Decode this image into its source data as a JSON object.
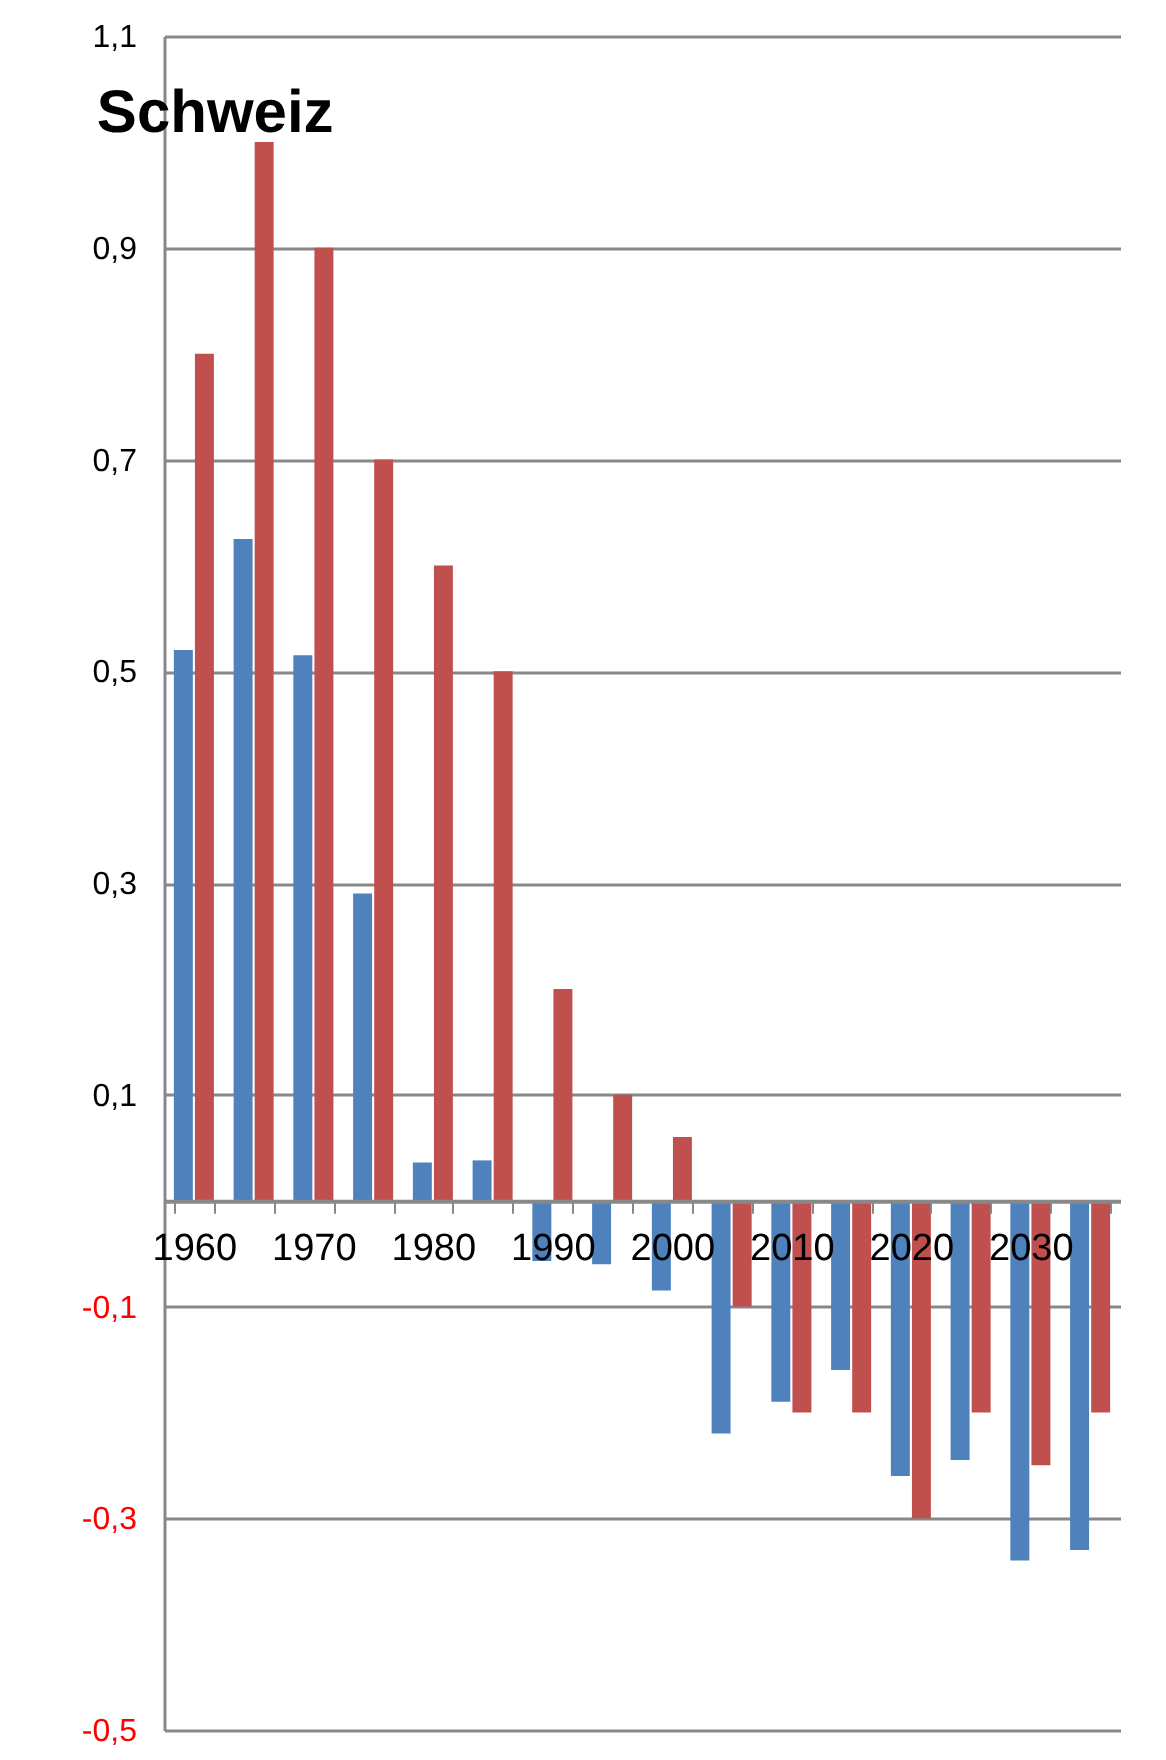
{
  "chart_data": {
    "type": "bar",
    "title": "Schweiz",
    "categories": [
      "1960",
      null,
      "1970",
      null,
      "1980",
      null,
      "1990",
      null,
      "2000",
      null,
      "2010",
      null,
      "2020",
      null,
      "2030",
      null
    ],
    "series": [
      {
        "color": "#4f81bd",
        "values": [
          0.52,
          0.625,
          0.515,
          0.29,
          0.036,
          0.038,
          -0.057,
          -0.06,
          -0.085,
          -0.22,
          -0.19,
          -0.16,
          -0.26,
          -0.245,
          -0.34,
          -0.33
        ]
      },
      {
        "color": "#c0504d",
        "values": [
          0.8,
          1.0,
          0.9,
          0.7,
          0.6,
          0.5,
          0.2,
          0.1,
          0.06,
          -0.1,
          -0.2,
          -0.2,
          -0.3,
          -0.2,
          -0.25,
          -0.2
        ]
      }
    ],
    "ylim": [
      -0.5,
      1.1
    ],
    "yticks": [
      {
        "value": -0.5,
        "label": "-0,5"
      },
      {
        "value": -0.3,
        "label": "-0,3"
      },
      {
        "value": -0.1,
        "label": "-0,1"
      },
      {
        "value": 0.1,
        "label": "0,1"
      },
      {
        "value": 0.3,
        "label": "0,3"
      },
      {
        "value": 0.5,
        "label": "0,5"
      },
      {
        "value": 0.7,
        "label": "0,7"
      },
      {
        "value": 0.9,
        "label": "0,9"
      },
      {
        "value": 1.1,
        "label": "1,1"
      }
    ],
    "grid": "y",
    "legend": false
  }
}
